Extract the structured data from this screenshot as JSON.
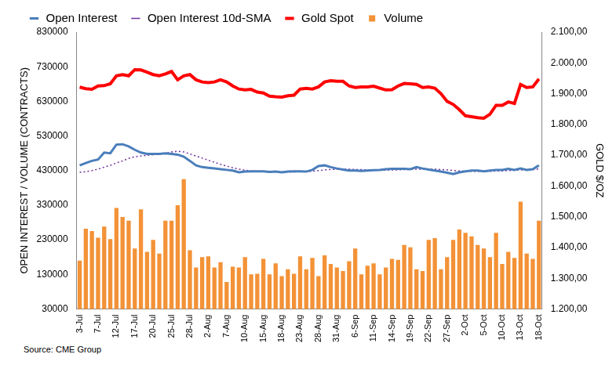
{
  "chart_data": {
    "type": "bar",
    "annotations": [
      "Source: CME Group"
    ],
    "y_label": "OPEN INTEREST / VOLUME (CONTRACTS)",
    "y2_label": "GOLD $/OZ",
    "categories": [
      "3-Jul",
      null,
      null,
      "7-Jul",
      null,
      null,
      "12-Jul",
      null,
      null,
      "17-Jul",
      null,
      null,
      "20-Jul",
      null,
      null,
      "25-Jul",
      null,
      null,
      "28-Jul",
      null,
      null,
      "2-Aug",
      null,
      null,
      "7-Aug",
      null,
      null,
      "10-Aug",
      null,
      null,
      "15-Aug",
      null,
      null,
      "18-Aug",
      null,
      null,
      "23-Aug",
      null,
      null,
      "28-Aug",
      null,
      null,
      "31-Aug",
      null,
      null,
      "6-Sep",
      null,
      null,
      "11-Sep",
      null,
      null,
      "14-Sep",
      null,
      null,
      "19-Sep",
      null,
      null,
      "22-Sep",
      null,
      null,
      "27-Sep",
      null,
      null,
      "2-Oct",
      null,
      null,
      "5-Oct",
      null,
      null,
      "10-Oct",
      null,
      null,
      "13-Oct",
      null,
      null,
      "18-Oct"
    ],
    "series": [
      {
        "name": "Volume",
        "type": "bar",
        "color": "#f39237",
        "values": [
          170000,
          262000,
          255000,
          236000,
          268000,
          232000,
          322000,
          296000,
          285000,
          205000,
          318000,
          195000,
          230000,
          190000,
          285000,
          285000,
          330000,
          405000,
          200000,
          150000,
          180000,
          182000,
          150000,
          165000,
          108000,
          152000,
          150000,
          180000,
          130000,
          132000,
          175000,
          130000,
          162000,
          125000,
          145000,
          132000,
          182000,
          145000,
          178000,
          125000,
          185000,
          160000,
          150000,
          140000,
          168000,
          205000,
          130000,
          155000,
          162000,
          130000,
          150000,
          175000,
          172000,
          215000,
          208000,
          145000,
          140000,
          230000,
          235000,
          145000,
          180000,
          230000,
          260000,
          250000,
          240000,
          215000,
          205000,
          180000,
          250000,
          160000,
          195000,
          178000,
          340000,
          190000,
          175000,
          285000
        ]
      },
      {
        "name": "Open Interest",
        "type": "line",
        "color": "#4a7ebb",
        "line_style": "solid",
        "marker": "none",
        "values": [
          445000,
          452000,
          458000,
          462000,
          482000,
          480000,
          505000,
          506000,
          500000,
          490000,
          482000,
          478000,
          478000,
          478000,
          480000,
          478000,
          476000,
          470000,
          458000,
          445000,
          440000,
          438000,
          436000,
          434000,
          432000,
          430000,
          425000,
          427000,
          428000,
          428000,
          428000,
          426000,
          427000,
          425000,
          427000,
          428000,
          428000,
          427000,
          432000,
          443000,
          445000,
          440000,
          436000,
          433000,
          430000,
          430000,
          429000,
          430000,
          431000,
          432000,
          434000,
          435000,
          435000,
          435000,
          434000,
          440000,
          436000,
          433000,
          430000,
          427000,
          424000,
          420000,
          425000,
          428000,
          430000,
          430000,
          428000,
          430000,
          432000,
          432000,
          435000,
          432000,
          436000,
          432000,
          434000,
          445000
        ]
      },
      {
        "name": "Open Interest 10d-SMA",
        "type": "line",
        "color": "#7030a0",
        "line_style": "dotted",
        "marker": "none",
        "values": [
          425000,
          427000,
          430000,
          434000,
          440000,
          445000,
          452000,
          458000,
          465000,
          470000,
          472000,
          474000,
          476000,
          478000,
          480000,
          484000,
          486000,
          484000,
          478000,
          472000,
          466000,
          460000,
          454000,
          448000,
          443000,
          438000,
          434000,
          431000,
          429000,
          428000,
          427000,
          427000,
          427000,
          426000,
          426000,
          426000,
          427000,
          427000,
          428000,
          430000,
          432000,
          433000,
          434000,
          434000,
          434000,
          433000,
          433000,
          432000,
          431000,
          431000,
          431000,
          432000,
          432000,
          433000,
          433000,
          434000,
          434000,
          434000,
          434000,
          433000,
          432000,
          430000,
          429000,
          428000,
          428000,
          428000,
          428000,
          428000,
          429000,
          429000,
          430000,
          431000,
          432000,
          432000,
          433000,
          435000
        ]
      },
      {
        "name": "Gold Spot",
        "type": "line",
        "color": "#ff0000",
        "axis": "y2",
        "line_style": "solid",
        "marker": "none",
        "values": [
          1921,
          1916,
          1914,
          1925,
          1926,
          1932,
          1958,
          1962,
          1958,
          1978,
          1977,
          1970,
          1962,
          1958,
          1964,
          1972,
          1945,
          1958,
          1962,
          1945,
          1938,
          1936,
          1938,
          1945,
          1938,
          1925,
          1915,
          1912,
          1914,
          1905,
          1902,
          1892,
          1890,
          1889,
          1893,
          1895,
          1915,
          1917,
          1915,
          1922,
          1938,
          1942,
          1940,
          1940,
          1925,
          1920,
          1922,
          1922,
          1924,
          1918,
          1912,
          1913,
          1925,
          1933,
          1932,
          1930,
          1920,
          1922,
          1918,
          1900,
          1875,
          1865,
          1848,
          1828,
          1825,
          1822,
          1820,
          1833,
          1862,
          1862,
          1873,
          1868,
          1930,
          1920,
          1922,
          1948
        ]
      }
    ],
    "ylim": [
      30000,
      830000
    ],
    "yticks": [
      30000,
      130000,
      230000,
      330000,
      430000,
      530000,
      630000,
      730000,
      830000
    ],
    "y2lim": [
      1200,
      2100
    ],
    "y2ticks": [
      {
        "value": 1200,
        "label": "1.200,00"
      },
      {
        "value": 1300,
        "label": "1.300,00"
      },
      {
        "value": 1400,
        "label": "1.400,00"
      },
      {
        "value": 1500,
        "label": "1.500,00"
      },
      {
        "value": 1600,
        "label": "1.600,00"
      },
      {
        "value": 1700,
        "label": "1.700,00"
      },
      {
        "value": 1800,
        "label": "1.800,00"
      },
      {
        "value": 1900,
        "label": "1.900,00"
      },
      {
        "value": 2000,
        "label": "2.000,00"
      },
      {
        "value": 2100,
        "label": "2.100,00"
      }
    ],
    "grid": false,
    "legend": "top"
  }
}
